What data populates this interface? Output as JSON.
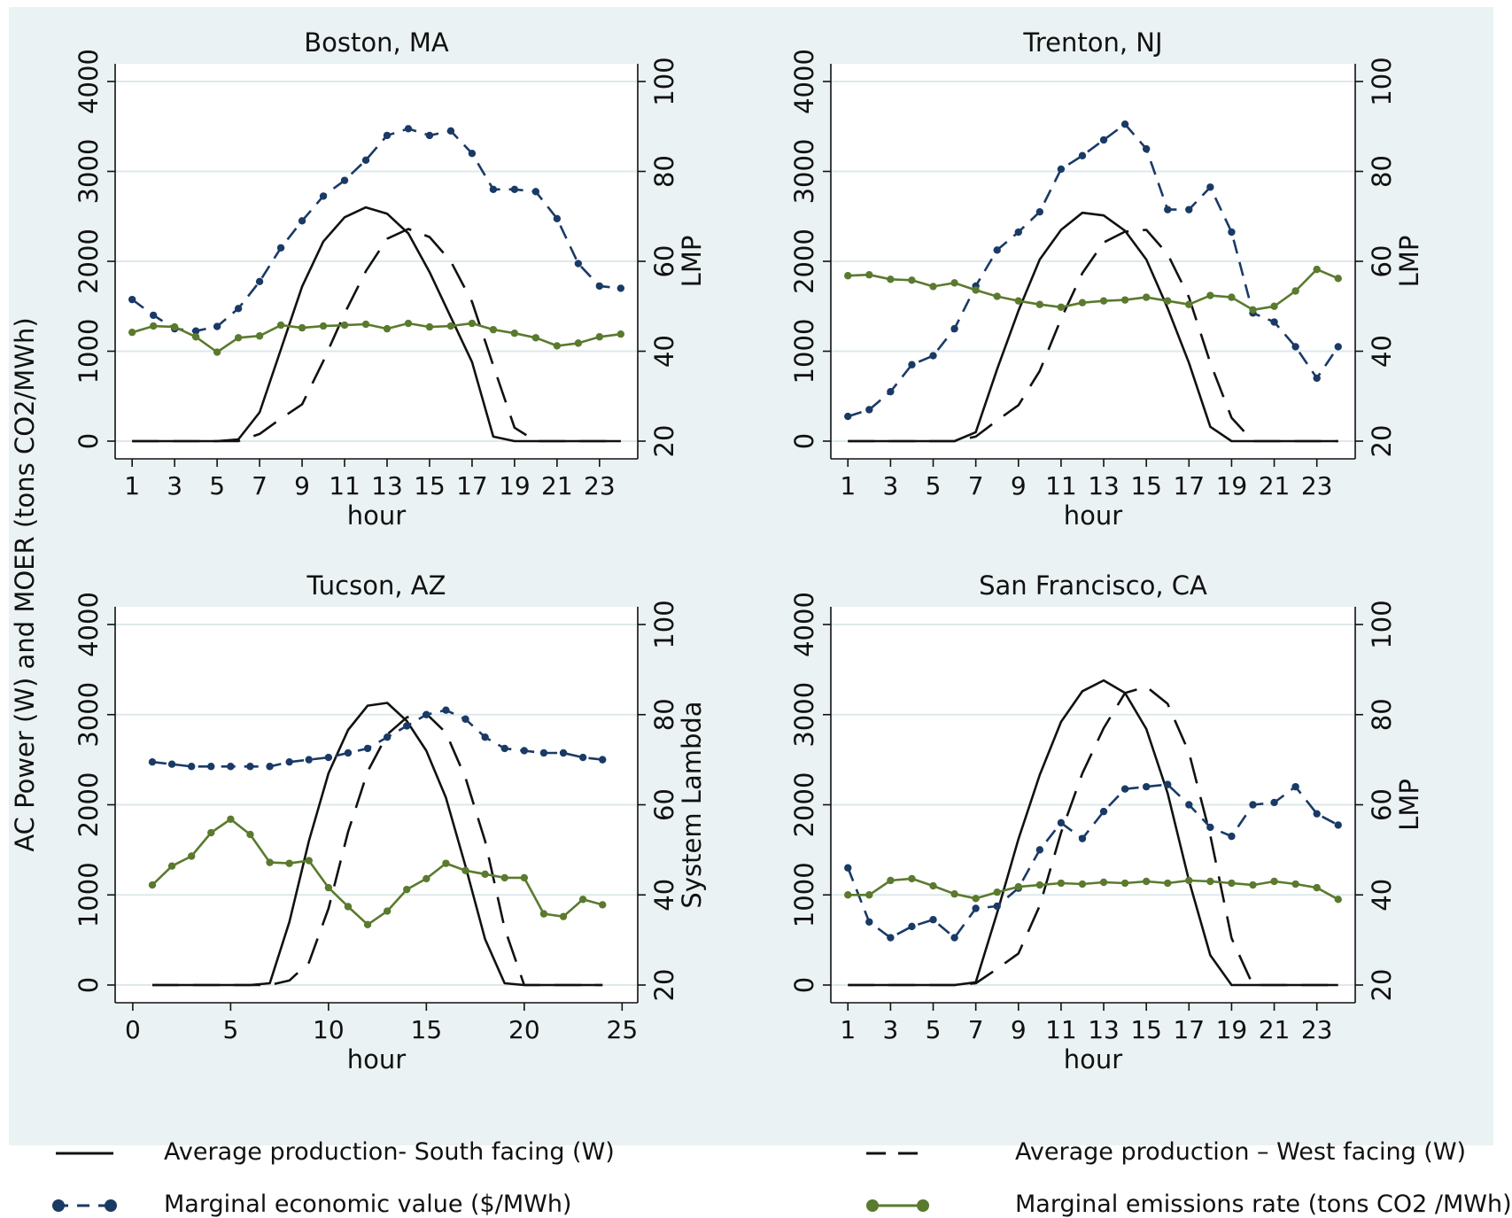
{
  "y_axis_label": "AC Power (W) and MOER (tons CO2/MWh)",
  "colors": {
    "south": "#111111",
    "west": "#111111",
    "economic": "#1a3a66",
    "emissions": "#5a7a2e",
    "grid": "#dde9ea",
    "plot_bg": "#ffffff",
    "outer_bg": "#eaf2f3"
  },
  "legend": {
    "south": "Average production- South facing (W)",
    "west": "Average production – West facing (W)",
    "economic": "Marginal economic value ($/MWh)",
    "emissions": "Marginal emissions rate (tons CO2 /MWh)"
  },
  "chart_data": [
    {
      "type": "line",
      "title": "Boston, MA",
      "xlabel": "hour",
      "ylabel_right": "LMP",
      "xticks": [
        1,
        3,
        5,
        7,
        9,
        11,
        13,
        15,
        17,
        19,
        21,
        23
      ],
      "xlim": [
        0.2,
        24.8
      ],
      "ylim": [
        0,
        4000
      ],
      "yticks": [
        0,
        1000,
        2000,
        3000,
        4000
      ],
      "ylim_right": [
        20,
        100
      ],
      "yticks_right": [
        20,
        40,
        60,
        80,
        100
      ],
      "grid": true,
      "x": [
        1,
        2,
        3,
        4,
        5,
        6,
        7,
        8,
        9,
        10,
        11,
        12,
        13,
        14,
        15,
        16,
        17,
        18,
        19,
        20,
        21,
        22,
        23,
        24
      ],
      "series": [
        {
          "name": "Average production- South facing (W)",
          "axis": "left",
          "style": "south",
          "values": [
            0,
            0,
            0,
            0,
            0,
            20,
            320,
            1020,
            1720,
            2220,
            2490,
            2600,
            2530,
            2310,
            1880,
            1380,
            880,
            50,
            0,
            0,
            0,
            0,
            0,
            0
          ]
        },
        {
          "name": "Average production – West facing (W)",
          "axis": "left",
          "style": "west",
          "values": [
            0,
            0,
            0,
            0,
            0,
            0,
            80,
            250,
            410,
            890,
            1420,
            1890,
            2250,
            2360,
            2270,
            2000,
            1550,
            840,
            150,
            0,
            0,
            0,
            0,
            0
          ]
        },
        {
          "name": "Marginal economic value ($/MWh)",
          "axis": "right",
          "style": "economic",
          "values": [
            51.5,
            48,
            45,
            44.5,
            45.5,
            49.5,
            55.5,
            63,
            69,
            74.5,
            78,
            82.5,
            88,
            89.5,
            88,
            89,
            84,
            76,
            76,
            75.5,
            69.5,
            59.5,
            54.5,
            54
          ]
        },
        {
          "name": "Marginal emissions rate (tons CO2 /MWh)",
          "axis": "left",
          "style": "emissions",
          "values": [
            1210,
            1280,
            1270,
            1160,
            990,
            1150,
            1170,
            1290,
            1260,
            1280,
            1290,
            1300,
            1250,
            1310,
            1270,
            1280,
            1310,
            1240,
            1200,
            1150,
            1060,
            1090,
            1160,
            1190
          ]
        }
      ]
    },
    {
      "type": "line",
      "title": "Trenton, NJ",
      "xlabel": "hour",
      "ylabel_right": "LMP",
      "xticks": [
        1,
        3,
        5,
        7,
        9,
        11,
        13,
        15,
        17,
        19,
        21,
        23
      ],
      "xlim": [
        0.2,
        24.8
      ],
      "ylim": [
        0,
        4000
      ],
      "yticks": [
        0,
        1000,
        2000,
        3000,
        4000
      ],
      "ylim_right": [
        20,
        100
      ],
      "yticks_right": [
        20,
        40,
        60,
        80,
        100
      ],
      "grid": true,
      "x": [
        1,
        2,
        3,
        4,
        5,
        6,
        7,
        8,
        9,
        10,
        11,
        12,
        13,
        14,
        15,
        16,
        17,
        18,
        19,
        20,
        21,
        22,
        23,
        24
      ],
      "series": [
        {
          "name": "Average production- South facing (W)",
          "axis": "left",
          "style": "south",
          "values": [
            0,
            0,
            0,
            0,
            0,
            0,
            100,
            800,
            1450,
            2020,
            2350,
            2540,
            2510,
            2340,
            2020,
            1480,
            870,
            160,
            0,
            0,
            0,
            0,
            0,
            0
          ]
        },
        {
          "name": "Average production – West facing (W)",
          "axis": "left",
          "style": "west",
          "values": [
            0,
            0,
            0,
            0,
            0,
            0,
            50,
            230,
            400,
            780,
            1360,
            1870,
            2210,
            2330,
            2350,
            2080,
            1600,
            870,
            260,
            0,
            0,
            0,
            0,
            0
          ]
        },
        {
          "name": "Marginal economic value ($/MWh)",
          "axis": "right",
          "style": "economic",
          "values": [
            25.5,
            27,
            31,
            37,
            39,
            45,
            54.5,
            62.5,
            66.5,
            71,
            80.5,
            83.5,
            87,
            90.5,
            85,
            71.5,
            71.5,
            76.5,
            66.5,
            48.5,
            46.5,
            41,
            34,
            41
          ]
        },
        {
          "name": "Marginal emissions rate (tons CO2 /MWh)",
          "axis": "left",
          "style": "emissions",
          "values": [
            1840,
            1850,
            1800,
            1790,
            1720,
            1760,
            1680,
            1610,
            1560,
            1520,
            1490,
            1540,
            1560,
            1570,
            1600,
            1560,
            1520,
            1620,
            1600,
            1460,
            1500,
            1670,
            1910,
            1810
          ]
        }
      ]
    },
    {
      "type": "line",
      "title": "Tucson, AZ",
      "xlabel": "hour",
      "ylabel_right": "System Lambda",
      "xticks": [
        0,
        5,
        10,
        15,
        20,
        25
      ],
      "xlim": [
        -0.9,
        25.8
      ],
      "ylim": [
        0,
        4000
      ],
      "yticks": [
        0,
        1000,
        2000,
        3000,
        4000
      ],
      "ylim_right": [
        20,
        100
      ],
      "yticks_right": [
        20,
        40,
        60,
        80,
        100
      ],
      "grid": true,
      "x": [
        1,
        2,
        3,
        4,
        5,
        6,
        7,
        8,
        9,
        10,
        11,
        12,
        13,
        14,
        15,
        16,
        17,
        18,
        19,
        20,
        21,
        22,
        23,
        24
      ],
      "series": [
        {
          "name": "Average production- South facing (W)",
          "axis": "left",
          "style": "south",
          "values": [
            0,
            0,
            0,
            0,
            0,
            0,
            20,
            700,
            1600,
            2350,
            2830,
            3100,
            3130,
            2930,
            2600,
            2080,
            1320,
            510,
            20,
            0,
            0,
            0,
            0,
            0
          ]
        },
        {
          "name": "Average production – West facing (W)",
          "axis": "left",
          "style": "west",
          "values": [
            0,
            0,
            0,
            0,
            0,
            0,
            0,
            50,
            250,
            850,
            1700,
            2370,
            2780,
            2970,
            3010,
            2800,
            2300,
            1600,
            630,
            0,
            0,
            0,
            0,
            0
          ]
        },
        {
          "name": "Marginal economic value ($/MWh)",
          "axis": "right",
          "style": "economic",
          "values": [
            69.5,
            69,
            68.5,
            68.5,
            68.5,
            68.5,
            68.5,
            69.5,
            70,
            70.5,
            71.5,
            72.5,
            75,
            77.5,
            80,
            81,
            79,
            75,
            72.5,
            72,
            71.5,
            71.5,
            70.5,
            70
          ]
        },
        {
          "name": "Marginal emissions rate (tons CO2 /MWh)",
          "axis": "left",
          "style": "emissions",
          "values": [
            1110,
            1320,
            1430,
            1690,
            1840,
            1670,
            1360,
            1350,
            1380,
            1080,
            870,
            670,
            820,
            1060,
            1180,
            1350,
            1270,
            1230,
            1190,
            1190,
            790,
            760,
            950,
            890
          ]
        }
      ]
    },
    {
      "type": "line",
      "title": "San Francisco, CA",
      "xlabel": "hour",
      "ylabel_right": "LMP",
      "xticks": [
        1,
        3,
        5,
        7,
        9,
        11,
        13,
        15,
        17,
        19,
        21,
        23
      ],
      "xlim": [
        0.2,
        24.8
      ],
      "ylim": [
        0,
        4000
      ],
      "yticks": [
        0,
        1000,
        2000,
        3000,
        4000
      ],
      "ylim_right": [
        20,
        100
      ],
      "yticks_right": [
        20,
        40,
        60,
        80,
        100
      ],
      "grid": true,
      "x": [
        1,
        2,
        3,
        4,
        5,
        6,
        7,
        8,
        9,
        10,
        11,
        12,
        13,
        14,
        15,
        16,
        17,
        18,
        19,
        20,
        21,
        22,
        23,
        24
      ],
      "series": [
        {
          "name": "Average production- South facing (W)",
          "axis": "left",
          "style": "south",
          "values": [
            0,
            0,
            0,
            0,
            0,
            0,
            30,
            800,
            1620,
            2330,
            2920,
            3260,
            3380,
            3240,
            2840,
            2130,
            1160,
            330,
            0,
            0,
            0,
            0,
            0,
            0
          ]
        },
        {
          "name": "Average production – West facing (W)",
          "axis": "left",
          "style": "west",
          "values": [
            0,
            0,
            0,
            0,
            0,
            0,
            20,
            180,
            350,
            880,
            1690,
            2350,
            2850,
            3240,
            3310,
            3120,
            2580,
            1660,
            520,
            0,
            0,
            0,
            0,
            0
          ]
        },
        {
          "name": "Marginal economic value ($/MWh)",
          "axis": "right",
          "style": "economic",
          "values": [
            46,
            34,
            30.5,
            33,
            34.5,
            30.5,
            37,
            37.5,
            41.5,
            50,
            56,
            52.5,
            58.5,
            63.5,
            64,
            64.5,
            60,
            55,
            53,
            60,
            60.5,
            64,
            58,
            55.5
          ]
        },
        {
          "name": "Marginal emissions rate (tons CO2 /MWh)",
          "axis": "left",
          "style": "emissions",
          "values": [
            1000,
            1000,
            1160,
            1180,
            1100,
            1010,
            960,
            1030,
            1090,
            1110,
            1130,
            1120,
            1140,
            1130,
            1150,
            1130,
            1160,
            1150,
            1130,
            1110,
            1150,
            1120,
            1080,
            950
          ]
        }
      ]
    }
  ]
}
